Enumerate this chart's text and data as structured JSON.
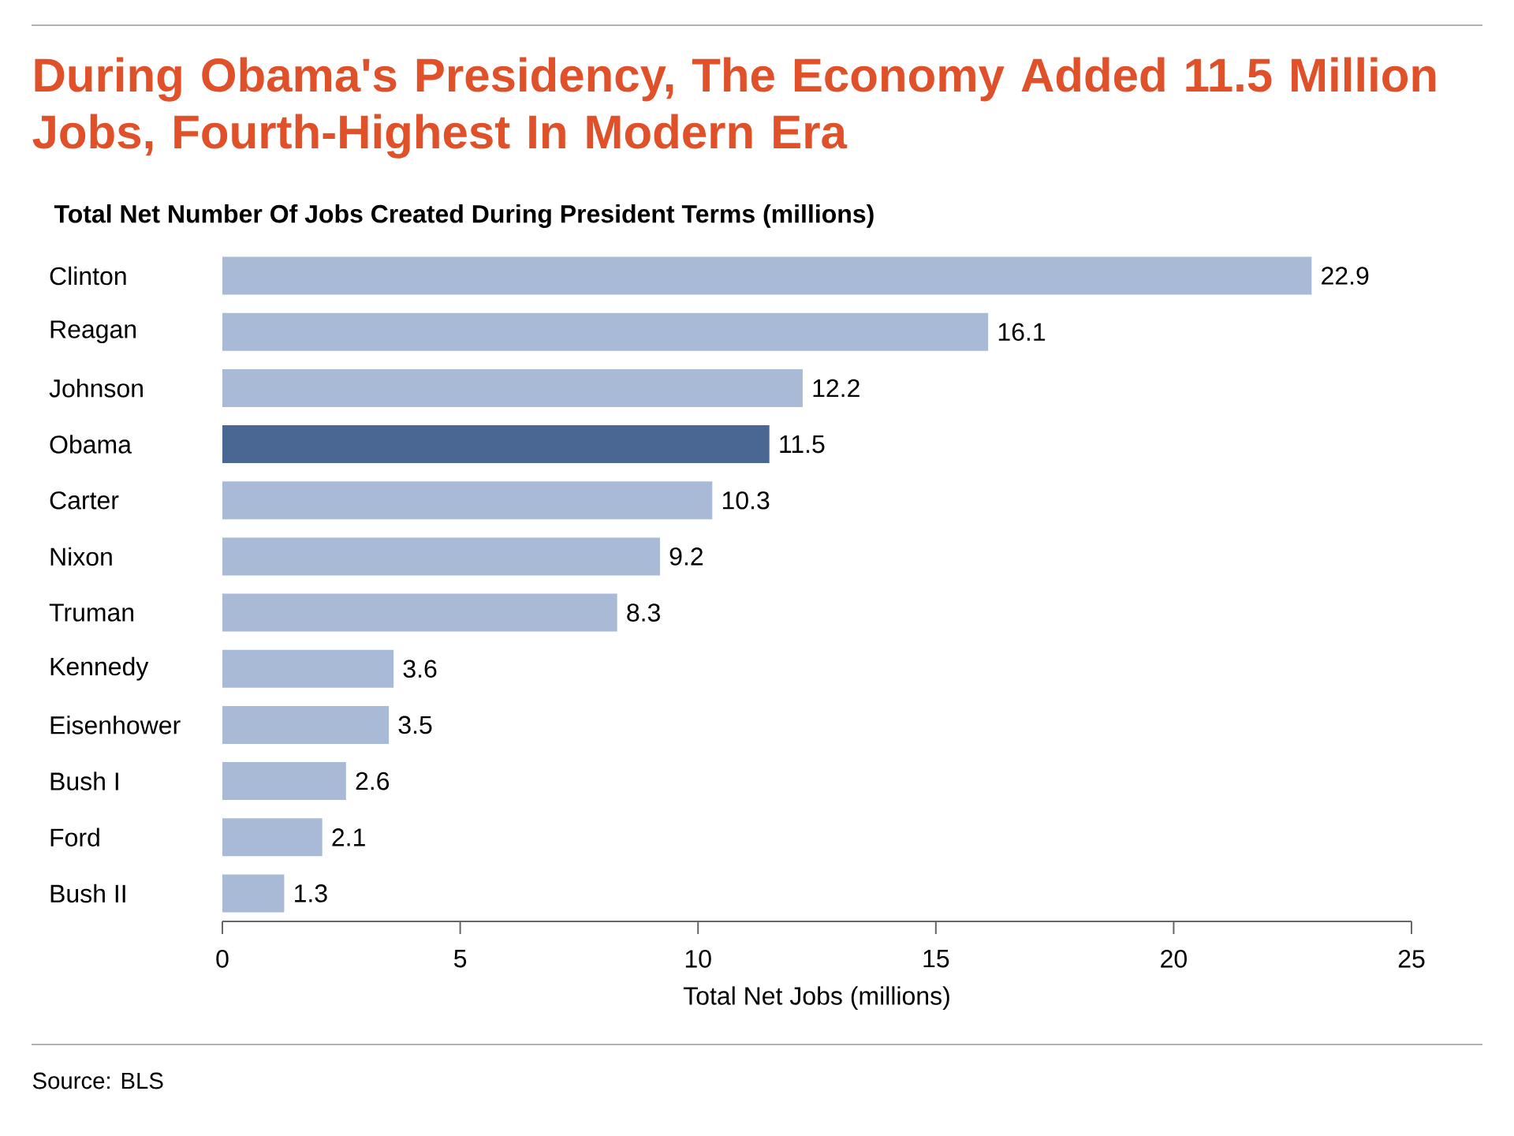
{
  "chart_data": {
    "type": "bar",
    "orientation": "horizontal",
    "title": "During Obama's Presidency, The Economy Added 11.5 Million Jobs, Fourth-Highest In Modern Era",
    "subtitle": "Total Net Number Of Jobs Created During President Terms (millions)",
    "xlabel": "Total Net Jobs (millions)",
    "categories": [
      "Clinton",
      "Reagan",
      "Johnson",
      "Obama",
      "Carter",
      "Nixon",
      "Truman",
      "Kennedy",
      "Eisenhower",
      "Bush I",
      "Ford",
      "Bush II"
    ],
    "values": [
      22.9,
      16.1,
      12.2,
      11.5,
      10.3,
      9.2,
      8.3,
      3.6,
      3.5,
      2.6,
      2.1,
      1.3
    ],
    "colors": [
      "#a9bad6",
      "#a9bad6",
      "#a9bad6",
      "#4a6794",
      "#a9bad6",
      "#a9bad6",
      "#a9bad6",
      "#a9bad6",
      "#a9bad6",
      "#a9bad6",
      "#a9bad6",
      "#a9bad6"
    ],
    "xlim": [
      0,
      25
    ],
    "xticks": [
      0,
      5,
      10,
      15,
      20,
      25
    ],
    "data_labels": true,
    "grid": false,
    "annotations": [
      "Source: BLS"
    ]
  }
}
